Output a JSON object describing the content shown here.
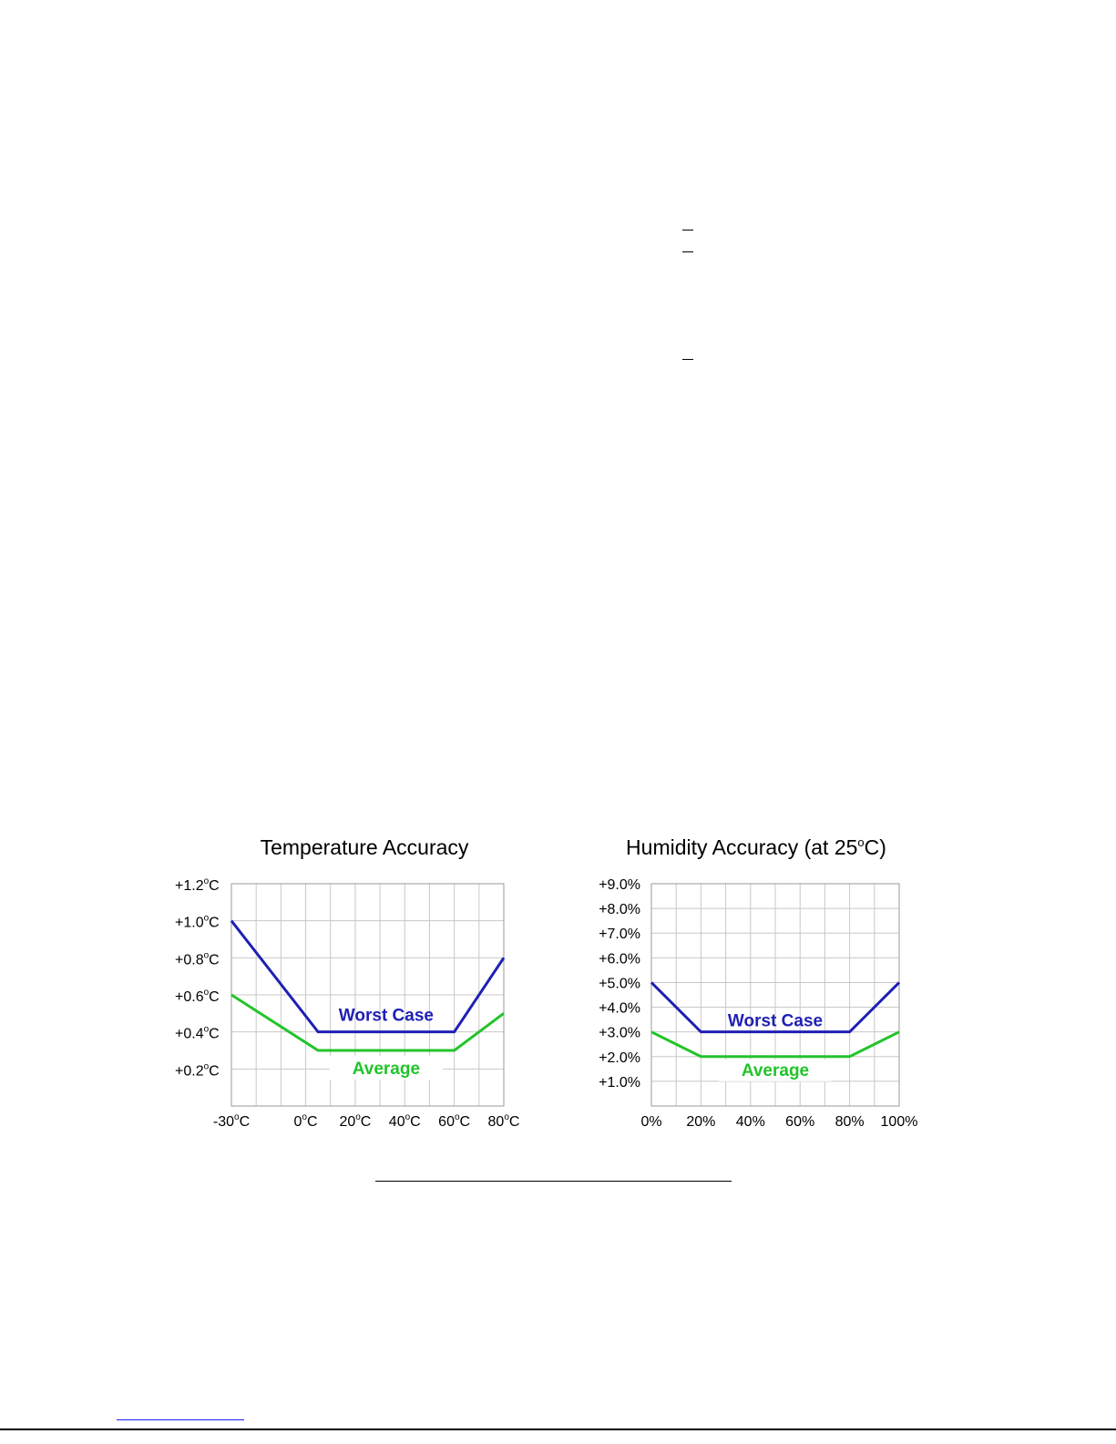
{
  "chart_data": [
    {
      "type": "line",
      "title": "Temperature Accuracy",
      "xlabel": "",
      "ylabel": "",
      "x_categories": [
        "-30°C",
        "0°C",
        "20°C",
        "40°C",
        "60°C",
        "80°C"
      ],
      "xlim": [
        -30,
        80
      ],
      "ylim": [
        0,
        1.2
      ],
      "y_ticks": [
        {
          "value": 1.2,
          "pre": "+1.2",
          "unit": "C"
        },
        {
          "value": 1.0,
          "pre": "+1.0",
          "unit": "C"
        },
        {
          "value": 0.8,
          "pre": "+0.8",
          "unit": "C"
        },
        {
          "value": 0.6,
          "pre": "+0.6",
          "unit": "C"
        },
        {
          "value": 0.4,
          "pre": "+0.4",
          "unit": "C"
        },
        {
          "value": 0.2,
          "pre": "+0.2",
          "unit": "C"
        }
      ],
      "x_ticks": [
        {
          "value": -30,
          "pre": "-30",
          "unit": "C"
        },
        {
          "value": 0,
          "pre": "0",
          "unit": "C"
        },
        {
          "value": 20,
          "pre": "20",
          "unit": "C"
        },
        {
          "value": 40,
          "pre": "40",
          "unit": "C"
        },
        {
          "value": 60,
          "pre": "60",
          "unit": "C"
        },
        {
          "value": 80,
          "pre": "80",
          "unit": "C"
        }
      ],
      "grid": true,
      "series": [
        {
          "name": "Worst Case",
          "color": "#1f1fb4",
          "x": [
            -30,
            5,
            60,
            80
          ],
          "y": [
            1.0,
            0.4,
            0.4,
            0.8
          ]
        },
        {
          "name": "Average",
          "color": "#22c42a",
          "x": [
            -30,
            5,
            60,
            80
          ],
          "y": [
            0.6,
            0.3,
            0.3,
            0.5
          ]
        }
      ]
    },
    {
      "type": "line",
      "title": "Humidity Accuracy (at 25°C)",
      "xlabel": "",
      "ylabel": "",
      "xlim": [
        0,
        100
      ],
      "ylim": [
        0,
        9
      ],
      "y_ticks": [
        {
          "value": 9,
          "label": "+9.0%"
        },
        {
          "value": 8,
          "label": "+8.0%"
        },
        {
          "value": 7,
          "label": "+7.0%"
        },
        {
          "value": 6,
          "label": "+6.0%"
        },
        {
          "value": 5,
          "label": "+5.0%"
        },
        {
          "value": 4,
          "label": "+4.0%"
        },
        {
          "value": 3,
          "label": "+3.0%"
        },
        {
          "value": 2,
          "label": "+2.0%"
        },
        {
          "value": 1,
          "label": "+1.0%"
        }
      ],
      "x_ticks": [
        {
          "value": 0,
          "label": "0%"
        },
        {
          "value": 20,
          "label": "20%"
        },
        {
          "value": 40,
          "label": "40%"
        },
        {
          "value": 60,
          "label": "60%"
        },
        {
          "value": 80,
          "label": "80%"
        },
        {
          "value": 100,
          "label": "100%"
        }
      ],
      "grid": true,
      "series": [
        {
          "name": "Worst Case",
          "color": "#1f1fb4",
          "x": [
            0,
            20,
            80,
            100
          ],
          "y": [
            5,
            3,
            3,
            5
          ]
        },
        {
          "name": "Average",
          "color": "#22c42a",
          "x": [
            0,
            20,
            80,
            100
          ],
          "y": [
            3,
            2,
            2,
            3
          ]
        }
      ]
    }
  ],
  "titles": {
    "temp_main": "Temperature Accuracy",
    "hum_main": "Humidity Accuracy (at 25",
    "hum_sup": "o",
    "hum_end": "C)"
  },
  "degree_mark": "o"
}
